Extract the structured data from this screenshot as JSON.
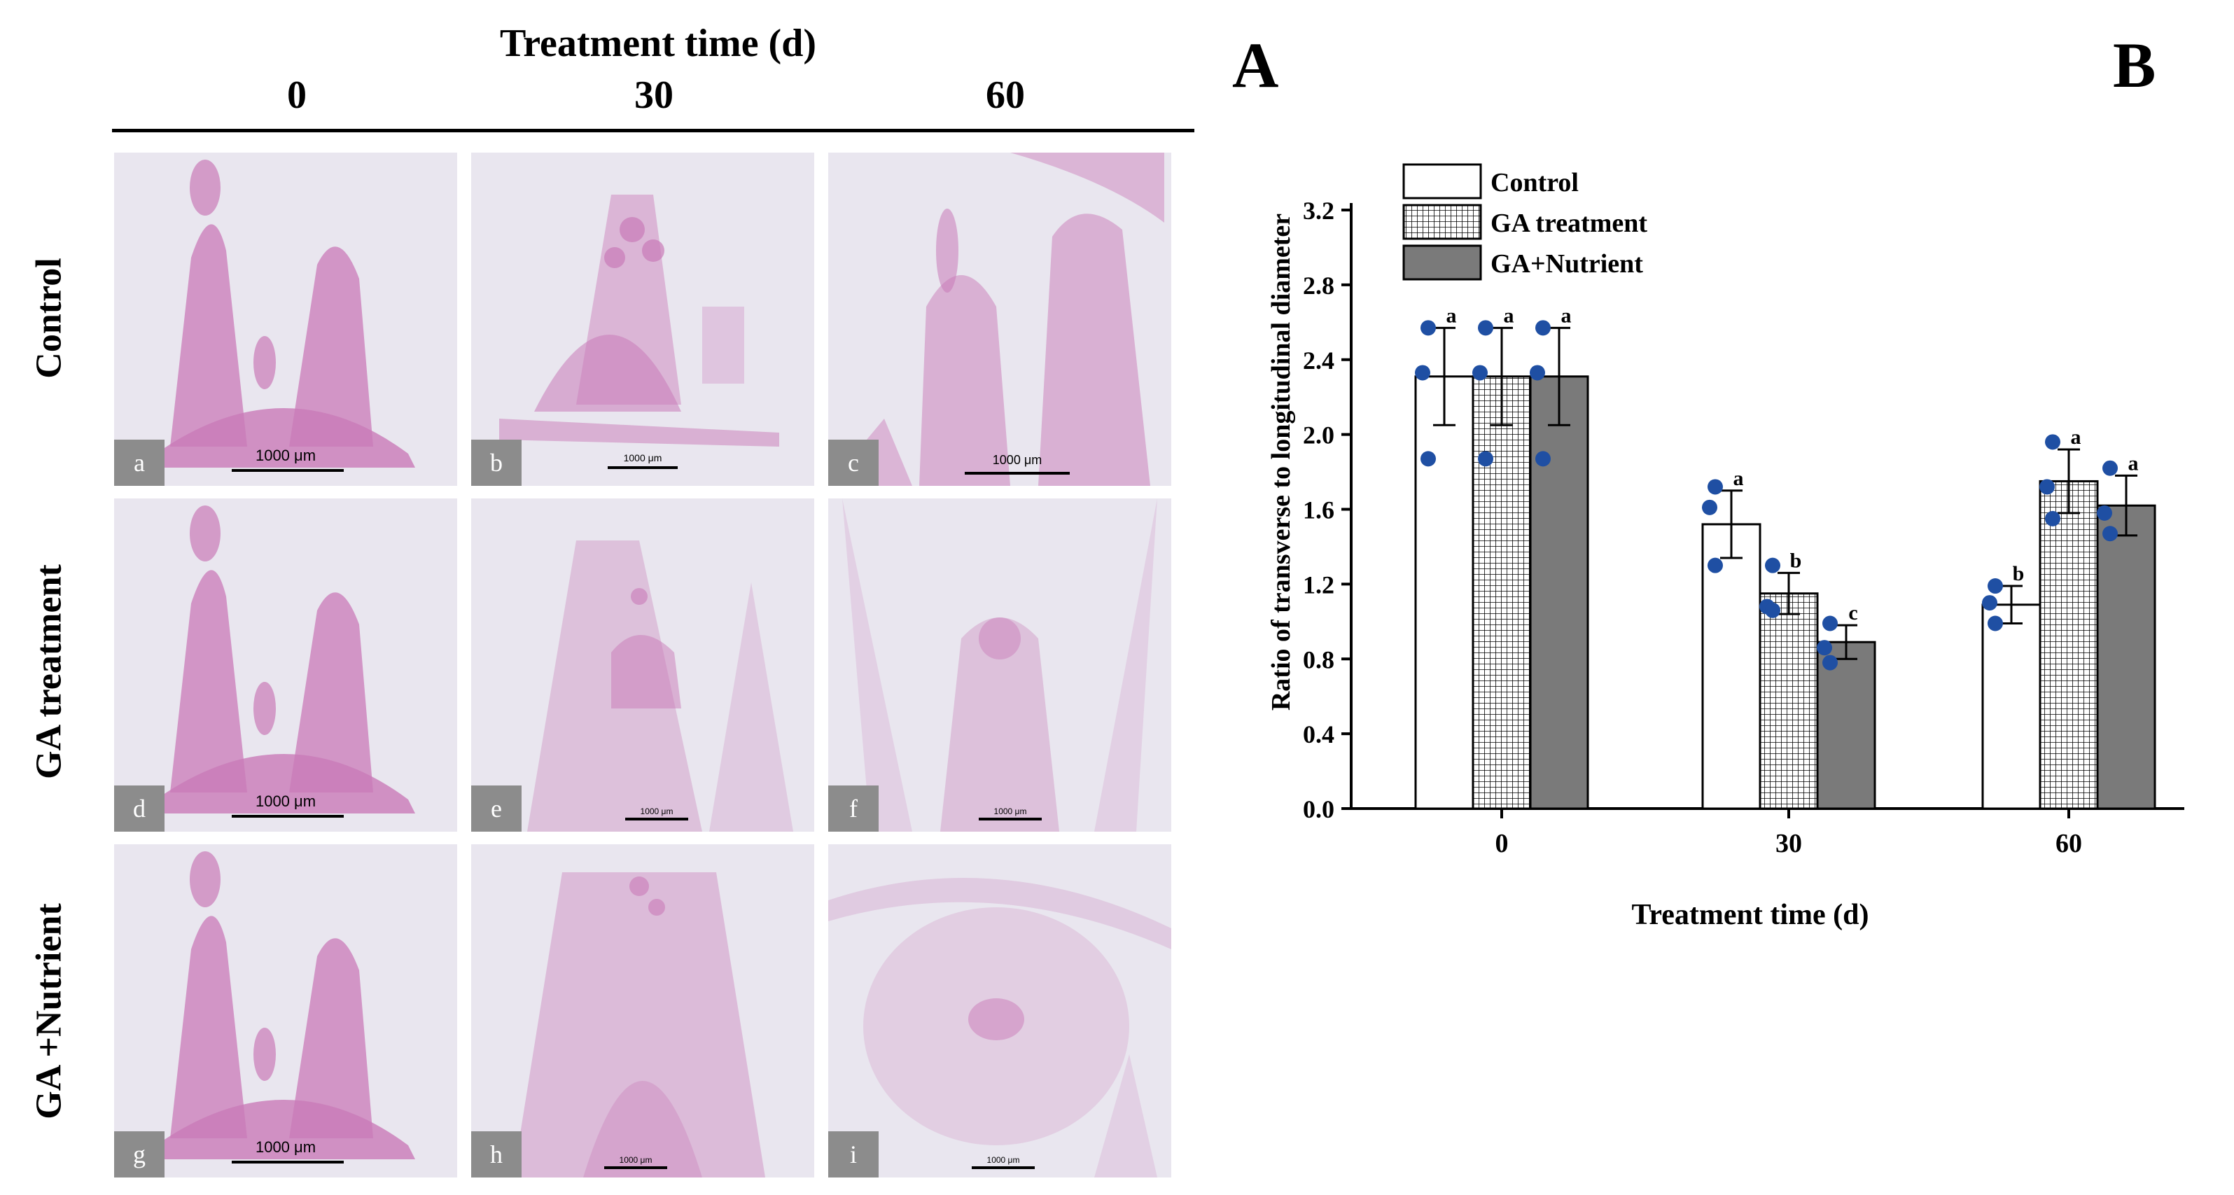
{
  "panel_a": {
    "title": "Treatment time (d)",
    "columns": [
      "0",
      "30",
      "60"
    ],
    "rows": [
      "Control",
      "GA treatment",
      "GA +Nutrient"
    ],
    "cells": [
      {
        "tag": "a",
        "scale": "1000 μm"
      },
      {
        "tag": "b",
        "scale": "1000 μm"
      },
      {
        "tag": "c",
        "scale": "1000 μm"
      },
      {
        "tag": "d",
        "scale": "1000 μm"
      },
      {
        "tag": "e",
        "scale": "1000 μm"
      },
      {
        "tag": "f",
        "scale": "1000 μm"
      },
      {
        "tag": "g",
        "scale": "1000 μm"
      },
      {
        "tag": "h",
        "scale": "1000 μm"
      },
      {
        "tag": "i",
        "scale": "1000 μm"
      }
    ]
  },
  "panel_letters": {
    "a": "A",
    "b": "B"
  },
  "colors": {
    "stain": "#c97ab8",
    "tissue_bg": "#e9e6ef",
    "dot": "#1f4fa3",
    "bar_gray": "#7a7a7a"
  },
  "chart_data": {
    "type": "bar",
    "categories": [
      "0",
      "30",
      "60"
    ],
    "xlabel": "Treatment time (d)",
    "ylabel": "Ratio of transverse to longitudinal diameter",
    "ylim": [
      0.0,
      3.2
    ],
    "yticks": [
      "0.0",
      "0.4",
      "0.8",
      "1.2",
      "1.6",
      "2.0",
      "2.4",
      "2.8",
      "3.2"
    ],
    "legend_position": "top-left",
    "series": [
      {
        "name": "Control",
        "pattern": "white",
        "values": [
          2.31,
          1.52,
          1.09
        ],
        "errors": [
          0.26,
          0.18,
          0.1
        ],
        "letters": [
          "a",
          "a",
          "b"
        ],
        "points": [
          [
            2.57,
            2.33,
            1.87
          ],
          [
            1.72,
            1.61,
            1.3
          ],
          [
            1.19,
            1.1,
            0.99
          ]
        ]
      },
      {
        "name": "GA treatment",
        "pattern": "grid",
        "values": [
          2.31,
          1.15,
          1.75
        ],
        "errors": [
          0.26,
          0.11,
          0.17
        ],
        "letters": [
          "a",
          "b",
          "a"
        ],
        "points": [
          [
            2.57,
            2.33,
            1.87
          ],
          [
            1.3,
            1.08,
            1.06
          ],
          [
            1.96,
            1.72,
            1.55
          ]
        ]
      },
      {
        "name": "GA+Nutrient",
        "pattern": "gray",
        "values": [
          2.31,
          0.89,
          1.62
        ],
        "errors": [
          0.26,
          0.09,
          0.16
        ],
        "letters": [
          "a",
          "c",
          "a"
        ],
        "points": [
          [
            2.57,
            2.33,
            1.87
          ],
          [
            0.99,
            0.86,
            0.78
          ],
          [
            1.82,
            1.58,
            1.47
          ]
        ]
      }
    ]
  }
}
